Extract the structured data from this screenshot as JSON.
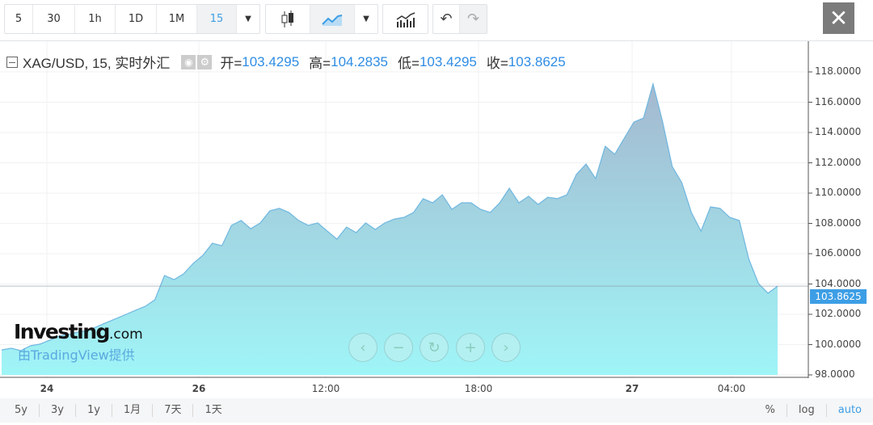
{
  "toolbar": {
    "intervals": [
      "5",
      "30",
      "1h",
      "1D",
      "1M",
      "15"
    ],
    "active_interval": "15",
    "close_icon": "close-icon"
  },
  "legend": {
    "symbol": "XAG/USD, 15, 实时外汇",
    "open_label": "开=",
    "open": "103.4295",
    "high_label": "高=",
    "high": "104.2835",
    "low_label": "低=",
    "low": "103.4295",
    "close_label": "收=",
    "close": "103.8625"
  },
  "branding": {
    "logo": "Investing.com",
    "provider": "由TradingView提供"
  },
  "bottom": {
    "ranges": [
      "5y",
      "3y",
      "1y",
      "1月",
      "7天",
      "1天"
    ],
    "percent": "%",
    "log": "log",
    "auto": "auto"
  },
  "colors": {
    "accent": "#3d9ee5",
    "line": "#6fb7e0",
    "fill_top": "#a4b8cf",
    "fill_bottom": "#9ff5f7"
  },
  "chart_data": {
    "type": "area",
    "symbol": "XAG/USD",
    "x_ticks": [
      "24",
      "26",
      "12:00",
      "18:00",
      "27",
      "04:00"
    ],
    "y_ticks": [
      "118.0000",
      "116.0000",
      "114.0000",
      "112.0000",
      "110.0000",
      "108.0000",
      "106.0000",
      "104.0000",
      "102.0000",
      "100.0000",
      "98.0000"
    ],
    "ylim": [
      98,
      118
    ],
    "last_price": "103.8625",
    "values": [
      99.65,
      99.76,
      99.6,
      99.92,
      100.03,
      100.29,
      100.56,
      100.67,
      100.83,
      100.93,
      101.2,
      101.47,
      101.73,
      102.0,
      102.27,
      102.53,
      102.96,
      104.56,
      104.29,
      104.67,
      105.36,
      105.89,
      106.69,
      106.53,
      107.87,
      108.19,
      107.65,
      108.03,
      108.83,
      108.99,
      108.72,
      108.19,
      107.87,
      108.03,
      107.49,
      106.96,
      107.76,
      107.39,
      108.03,
      107.6,
      108.03,
      108.29,
      108.4,
      108.72,
      109.63,
      109.36,
      109.89,
      108.93,
      109.36,
      109.36,
      108.93,
      108.72,
      109.36,
      110.32,
      109.36,
      109.79,
      109.25,
      109.73,
      109.63,
      109.89,
      111.23,
      111.92,
      110.96,
      113.09,
      112.56,
      113.63,
      114.69,
      114.96,
      117.2,
      114.69,
      111.76,
      110.69,
      108.72,
      107.49,
      109.09,
      108.99,
      108.4,
      108.19,
      105.63,
      104.03,
      103.39,
      103.86
    ]
  }
}
